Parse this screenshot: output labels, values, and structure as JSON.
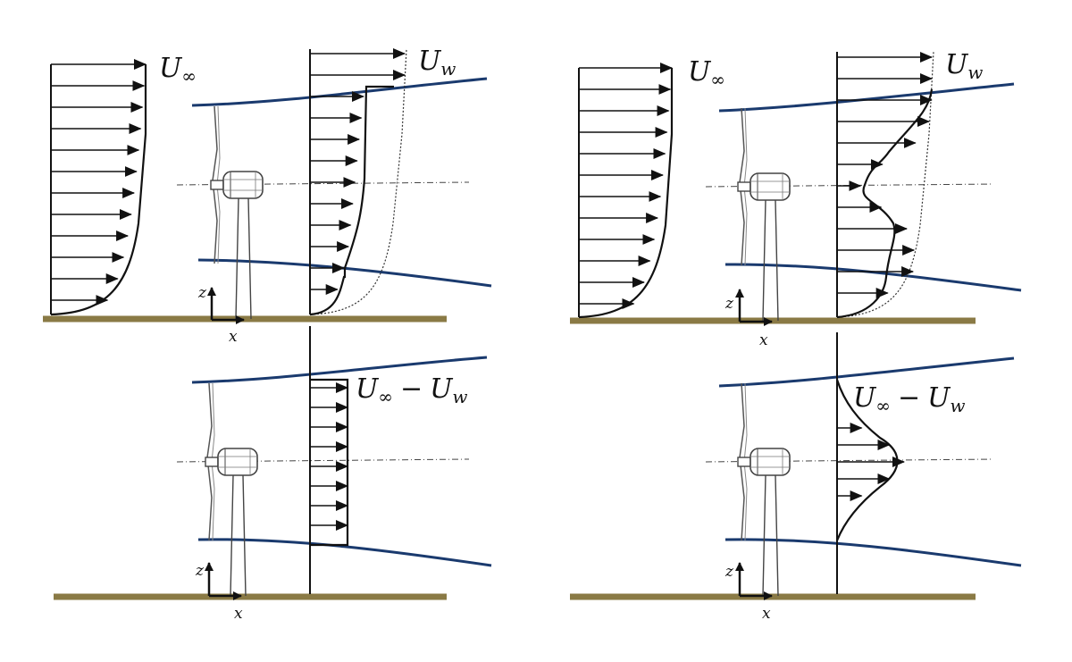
{
  "labels": {
    "u_inf": "U",
    "u_inf_sub": "∞",
    "u_w": "U",
    "u_w_sub": "w",
    "deficit_main": "U",
    "deficit_inf": "∞",
    "deficit_minus": "−",
    "deficit_u": "U",
    "deficit_w": "w",
    "axis_z": "z",
    "axis_x": "x"
  },
  "colors": {
    "wake_boundary": "#1a3a6e",
    "ground": "#8a7a45",
    "ink": "#111111",
    "turbine": "#444444"
  },
  "icons": [
    "wind-turbine-icon",
    "axis-arrows-icon"
  ],
  "panels": [
    {
      "id": "top-left",
      "profile": "top-hat",
      "shows": [
        "U∞",
        "Uw"
      ]
    },
    {
      "id": "top-right",
      "profile": "double-gaussian",
      "shows": [
        "U∞",
        "Uw"
      ]
    },
    {
      "id": "bottom-left",
      "profile": "top-hat",
      "shows": [
        "U∞ − Uw"
      ]
    },
    {
      "id": "bottom-right",
      "profile": "gaussian",
      "shows": [
        "U∞ − Uw"
      ]
    }
  ]
}
